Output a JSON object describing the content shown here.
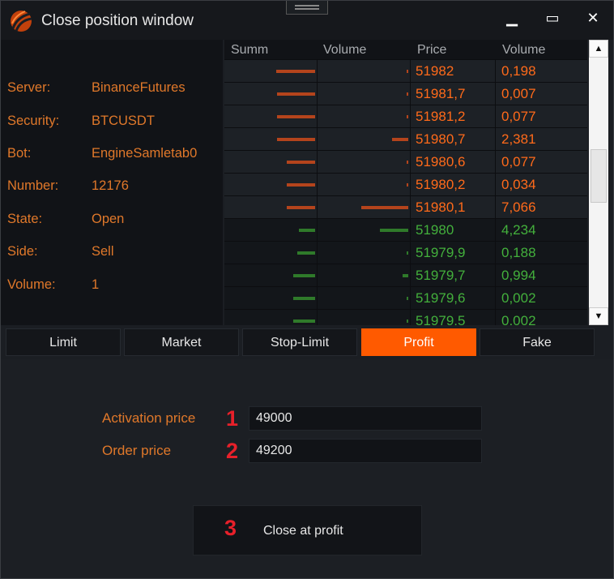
{
  "window": {
    "title": "Close position window",
    "controls": {
      "minimize": "▁",
      "maximize": "▭",
      "close": "✕"
    }
  },
  "info": [
    {
      "key": "Server:",
      "value": "BinanceFutures"
    },
    {
      "key": "Security:",
      "value": "BTCUSDT"
    },
    {
      "key": "Bot:",
      "value": "EngineSamletab0"
    },
    {
      "key": "Number:",
      "value": "12176"
    },
    {
      "key": "State:",
      "value": "Open"
    },
    {
      "key": "Side:",
      "value": "Sell"
    },
    {
      "key": "Volume:",
      "value": "1"
    }
  ],
  "orderbook": {
    "headers": [
      "Summ",
      "Volume",
      "Price",
      "Volume"
    ],
    "colors": {
      "ask": "#ff6a1a",
      "ask_bar": "#b4441c",
      "bid": "#43b03c",
      "bid_bar": "#2f7a2a"
    },
    "rows": [
      {
        "side": "ask",
        "price": "51982",
        "volume": "0,198",
        "summ_bar": 48,
        "vol_bar": 2
      },
      {
        "side": "ask",
        "price": "51981,7",
        "volume": "0,007",
        "summ_bar": 47,
        "vol_bar": 2
      },
      {
        "side": "ask",
        "price": "51981,2",
        "volume": "0,077",
        "summ_bar": 47,
        "vol_bar": 2
      },
      {
        "side": "ask",
        "price": "51980,7",
        "volume": "2,381",
        "summ_bar": 47,
        "vol_bar": 20
      },
      {
        "side": "ask",
        "price": "51980,6",
        "volume": "0,077",
        "summ_bar": 35,
        "vol_bar": 2
      },
      {
        "side": "ask",
        "price": "51980,2",
        "volume": "0,034",
        "summ_bar": 35,
        "vol_bar": 2
      },
      {
        "side": "ask",
        "price": "51980,1",
        "volume": "7,066",
        "summ_bar": 35,
        "vol_bar": 58
      },
      {
        "side": "bid",
        "price": "51980",
        "volume": "4,234",
        "summ_bar": 20,
        "vol_bar": 35
      },
      {
        "side": "bid",
        "price": "51979,9",
        "volume": "0,188",
        "summ_bar": 22,
        "vol_bar": 2
      },
      {
        "side": "bid",
        "price": "51979,7",
        "volume": "0,994",
        "summ_bar": 27,
        "vol_bar": 7
      },
      {
        "side": "bid",
        "price": "51979,6",
        "volume": "0,002",
        "summ_bar": 27,
        "vol_bar": 2
      },
      {
        "side": "bid",
        "price": "51979,5",
        "volume": "0,002",
        "summ_bar": 27,
        "vol_bar": 2
      }
    ]
  },
  "scrollbar": {
    "up": "▲",
    "down": "▼"
  },
  "tabs": [
    {
      "label": "Limit",
      "active": false
    },
    {
      "label": "Market",
      "active": false
    },
    {
      "label": "Stop-Limit",
      "active": false
    },
    {
      "label": "Profit",
      "active": true
    },
    {
      "label": "Fake",
      "active": false
    }
  ],
  "form": {
    "activation_label": "Activation price",
    "activation_value": "49000",
    "activation_marker": "1",
    "order_label": "Order price",
    "order_value": "49200",
    "order_marker": "2",
    "submit_label": "Close at profit",
    "submit_marker": "3"
  }
}
